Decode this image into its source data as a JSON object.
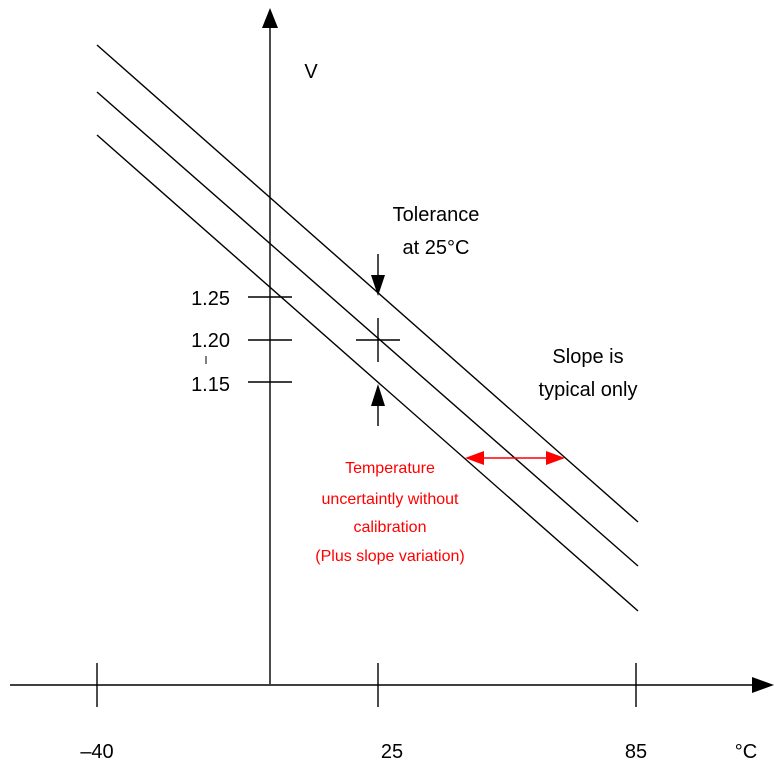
{
  "diagram": {
    "y_axis_label": "V",
    "x_axis_unit": "°C",
    "y_ticks": [
      "1.25",
      "1.20",
      "1.15"
    ],
    "x_ticks": [
      "–40",
      "25",
      "85"
    ],
    "tolerance_label": [
      "Tolerance",
      "at 25°C"
    ],
    "slope_label": [
      "Slope is",
      "typical only"
    ],
    "temperature_note": [
      "Temperature",
      "uncertaintly without",
      "calibration",
      "(Plus slope variation)"
    ],
    "colors": {
      "lines": "#000000",
      "annotation": "#ff0000"
    }
  }
}
